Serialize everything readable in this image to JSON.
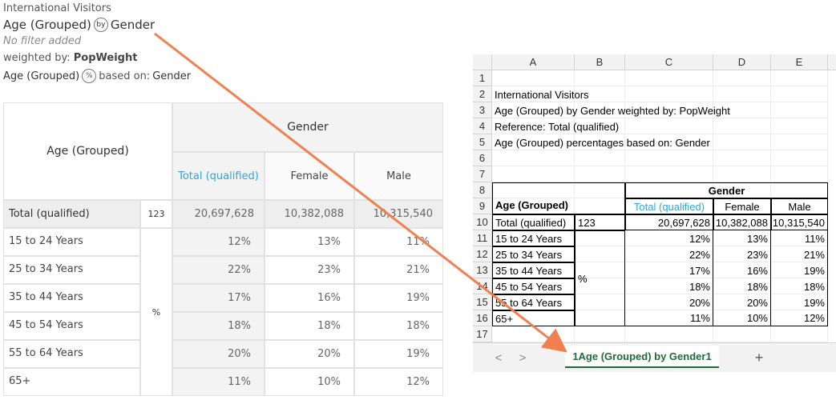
{
  "left": {
    "dataset": "International Visitors",
    "title_var": "Age (Grouped)",
    "by_icon": "by",
    "by_var": "Gender",
    "filter": "No filter added",
    "weighted_label": "weighted by:",
    "weight": "PopWeight",
    "pct_var": "Age (Grouped)",
    "pct_icon": "%",
    "based_label": "based on:",
    "based_var": "Gender",
    "table": {
      "row_header": "Age (Grouped)",
      "col_group": "Gender",
      "columns": [
        "Total (qualified)",
        "Female",
        "Male"
      ],
      "total_row": {
        "label": "Total (qualified)",
        "stat": "123",
        "values": [
          "20,697,628",
          "10,382,088",
          "10,315,540"
        ]
      },
      "stat": "%",
      "rows": [
        {
          "label": "15 to 24 Years",
          "values": [
            "12%",
            "13%",
            "11%"
          ]
        },
        {
          "label": "25 to 34 Years",
          "values": [
            "22%",
            "23%",
            "21%"
          ]
        },
        {
          "label": "35 to 44 Years",
          "values": [
            "17%",
            "16%",
            "19%"
          ]
        },
        {
          "label": "45 to 54 Years",
          "values": [
            "18%",
            "18%",
            "18%"
          ]
        },
        {
          "label": "55 to 64 Years",
          "values": [
            "20%",
            "20%",
            "19%"
          ]
        },
        {
          "label": "65+",
          "values": [
            "11%",
            "10%",
            "12%"
          ]
        }
      ]
    }
  },
  "spreadsheet": {
    "column_letters": [
      "A",
      "B",
      "C",
      "D",
      "E"
    ],
    "row_numbers": [
      1,
      2,
      3,
      4,
      5,
      6,
      7,
      8,
      9,
      10,
      11,
      12,
      13,
      14,
      15,
      16,
      17
    ],
    "lines": [
      "International Visitors",
      "Age (Grouped) by Gender weighted by: PopWeight",
      "Reference: Total (qualified)",
      "Age (Grouped) percentages based on: Gender"
    ],
    "table": {
      "row_header": "Age (Grouped)",
      "col_group": "Gender",
      "columns": [
        "Total (qualified)",
        "Female",
        "Male"
      ],
      "total_row": {
        "label": "Total (qualified)",
        "stat": "123",
        "values": [
          "20,697,628",
          "10,382,088",
          "10,315,540"
        ]
      },
      "stat": "%",
      "rows": [
        {
          "label": "15 to 24 Years",
          "values": [
            "12%",
            "13%",
            "11%"
          ]
        },
        {
          "label": "25 to 34 Years",
          "values": [
            "22%",
            "23%",
            "21%"
          ]
        },
        {
          "label": "35 to 44 Years",
          "values": [
            "17%",
            "16%",
            "19%"
          ]
        },
        {
          "label": "45 to 54 Years",
          "values": [
            "18%",
            "18%",
            "18%"
          ]
        },
        {
          "label": "55 to 64 Years",
          "values": [
            "20%",
            "20%",
            "19%"
          ]
        },
        {
          "label": "65+",
          "values": [
            "11%",
            "10%",
            "12%"
          ]
        }
      ]
    },
    "nav": [
      "<",
      ">"
    ],
    "tab": "1Age (Grouped) by Gender1",
    "add": "+"
  }
}
